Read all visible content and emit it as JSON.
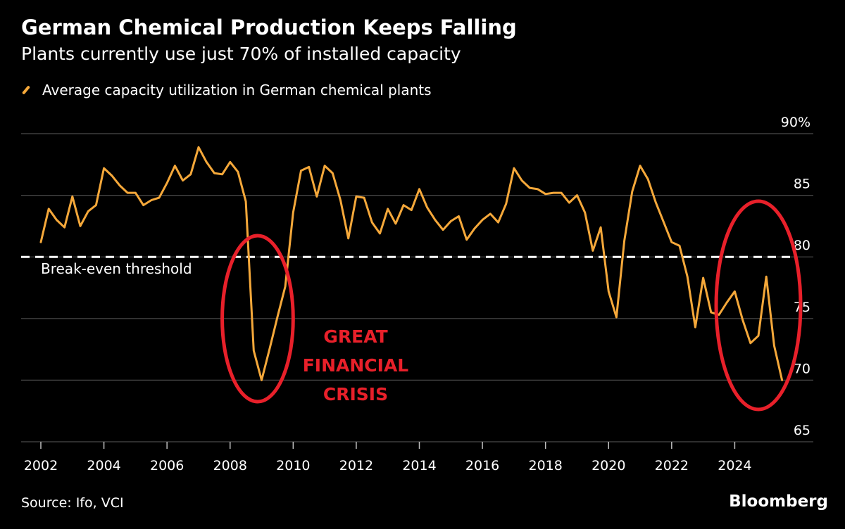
{
  "header": {
    "title": "German Chemical Production Keeps Falling",
    "subtitle": "Plants currently use just 70% of installed capacity"
  },
  "footer": {
    "source": "Source: Ifo, VCI",
    "brand": "Bloomberg"
  },
  "colors": {
    "line": "#f5a83a",
    "grid": "#4a4a4a",
    "threshold": "#ffffff",
    "annotation": "#e8202a",
    "background": "#000000"
  },
  "chart_data": {
    "type": "line",
    "title": "German Chemical Production Keeps Falling",
    "subtitle": "Plants currently use just 70% of installed capacity",
    "xlabel": "",
    "ylabel": "",
    "xlim": [
      2002,
      2026
    ],
    "ylim": [
      65,
      90
    ],
    "x_ticks": [
      2002,
      2004,
      2006,
      2008,
      2010,
      2012,
      2014,
      2016,
      2018,
      2020,
      2022,
      2024
    ],
    "y_ticks": [
      65,
      70,
      75,
      80,
      85,
      90
    ],
    "y_tick_labels": [
      "65",
      "70",
      "75",
      "80",
      "85",
      "90%"
    ],
    "grid": true,
    "legend": "top-left",
    "series": [
      {
        "name": "Average capacity utilization in German chemical plants",
        "x": [
          2002.0,
          2002.25,
          2002.5,
          2002.75,
          2003.0,
          2003.25,
          2003.5,
          2003.75,
          2004.0,
          2004.25,
          2004.5,
          2004.75,
          2005.0,
          2005.25,
          2005.5,
          2005.75,
          2006.0,
          2006.25,
          2006.5,
          2006.75,
          2007.0,
          2007.25,
          2007.5,
          2007.75,
          2008.0,
          2008.25,
          2008.5,
          2008.75,
          2009.0,
          2009.25,
          2009.5,
          2009.75,
          2010.0,
          2010.25,
          2010.5,
          2010.75,
          2011.0,
          2011.25,
          2011.5,
          2011.75,
          2012.0,
          2012.25,
          2012.5,
          2012.75,
          2013.0,
          2013.25,
          2013.5,
          2013.75,
          2014.0,
          2014.25,
          2014.5,
          2014.75,
          2015.0,
          2015.25,
          2015.5,
          2015.75,
          2016.0,
          2016.25,
          2016.5,
          2016.75,
          2017.0,
          2017.25,
          2017.5,
          2017.75,
          2018.0,
          2018.25,
          2018.5,
          2018.75,
          2019.0,
          2019.25,
          2019.5,
          2019.75,
          2020.0,
          2020.25,
          2020.5,
          2020.75,
          2021.0,
          2021.25,
          2021.5,
          2021.75,
          2022.0,
          2022.25,
          2022.5,
          2022.75,
          2023.0,
          2023.25,
          2023.5,
          2023.75,
          2024.0,
          2024.25,
          2024.5,
          2024.75,
          2025.0,
          2025.25,
          2025.5
        ],
        "values": [
          81.2,
          83.9,
          83.0,
          82.4,
          84.9,
          82.5,
          83.7,
          84.2,
          87.2,
          86.6,
          85.8,
          85.2,
          85.2,
          84.2,
          84.6,
          84.8,
          86.0,
          87.4,
          86.2,
          86.7,
          88.9,
          87.7,
          86.8,
          86.7,
          87.7,
          86.9,
          84.5,
          72.4,
          70.0,
          72.5,
          75.1,
          77.6,
          83.6,
          87.0,
          87.3,
          84.9,
          87.4,
          86.8,
          84.6,
          81.5,
          84.9,
          84.8,
          82.8,
          81.9,
          83.9,
          82.7,
          84.2,
          83.8,
          85.5,
          84.0,
          83.0,
          82.2,
          82.9,
          83.3,
          81.4,
          82.3,
          83.0,
          83.5,
          82.8,
          84.3,
          87.2,
          86.2,
          85.6,
          85.5,
          85.1,
          85.2,
          85.2,
          84.4,
          85.0,
          83.6,
          80.5,
          82.4,
          77.2,
          75.1,
          81.3,
          85.3,
          87.4,
          86.3,
          84.4,
          82.8,
          81.2,
          80.9,
          78.4,
          74.3,
          78.3,
          75.5,
          75.3,
          76.3,
          77.2,
          74.9,
          73.0,
          73.6,
          78.4,
          72.8,
          70.0
        ]
      }
    ],
    "annotations": [
      {
        "text": "Break-even threshold",
        "y": 80,
        "style": "dashed-line"
      },
      {
        "text_lines": [
          "GREAT",
          "FINANCIAL",
          "CRISIS"
        ],
        "x_range": [
          2007.75,
          2010.0
        ]
      },
      {
        "x_range": [
          2023.5,
          2026.0
        ]
      }
    ]
  }
}
